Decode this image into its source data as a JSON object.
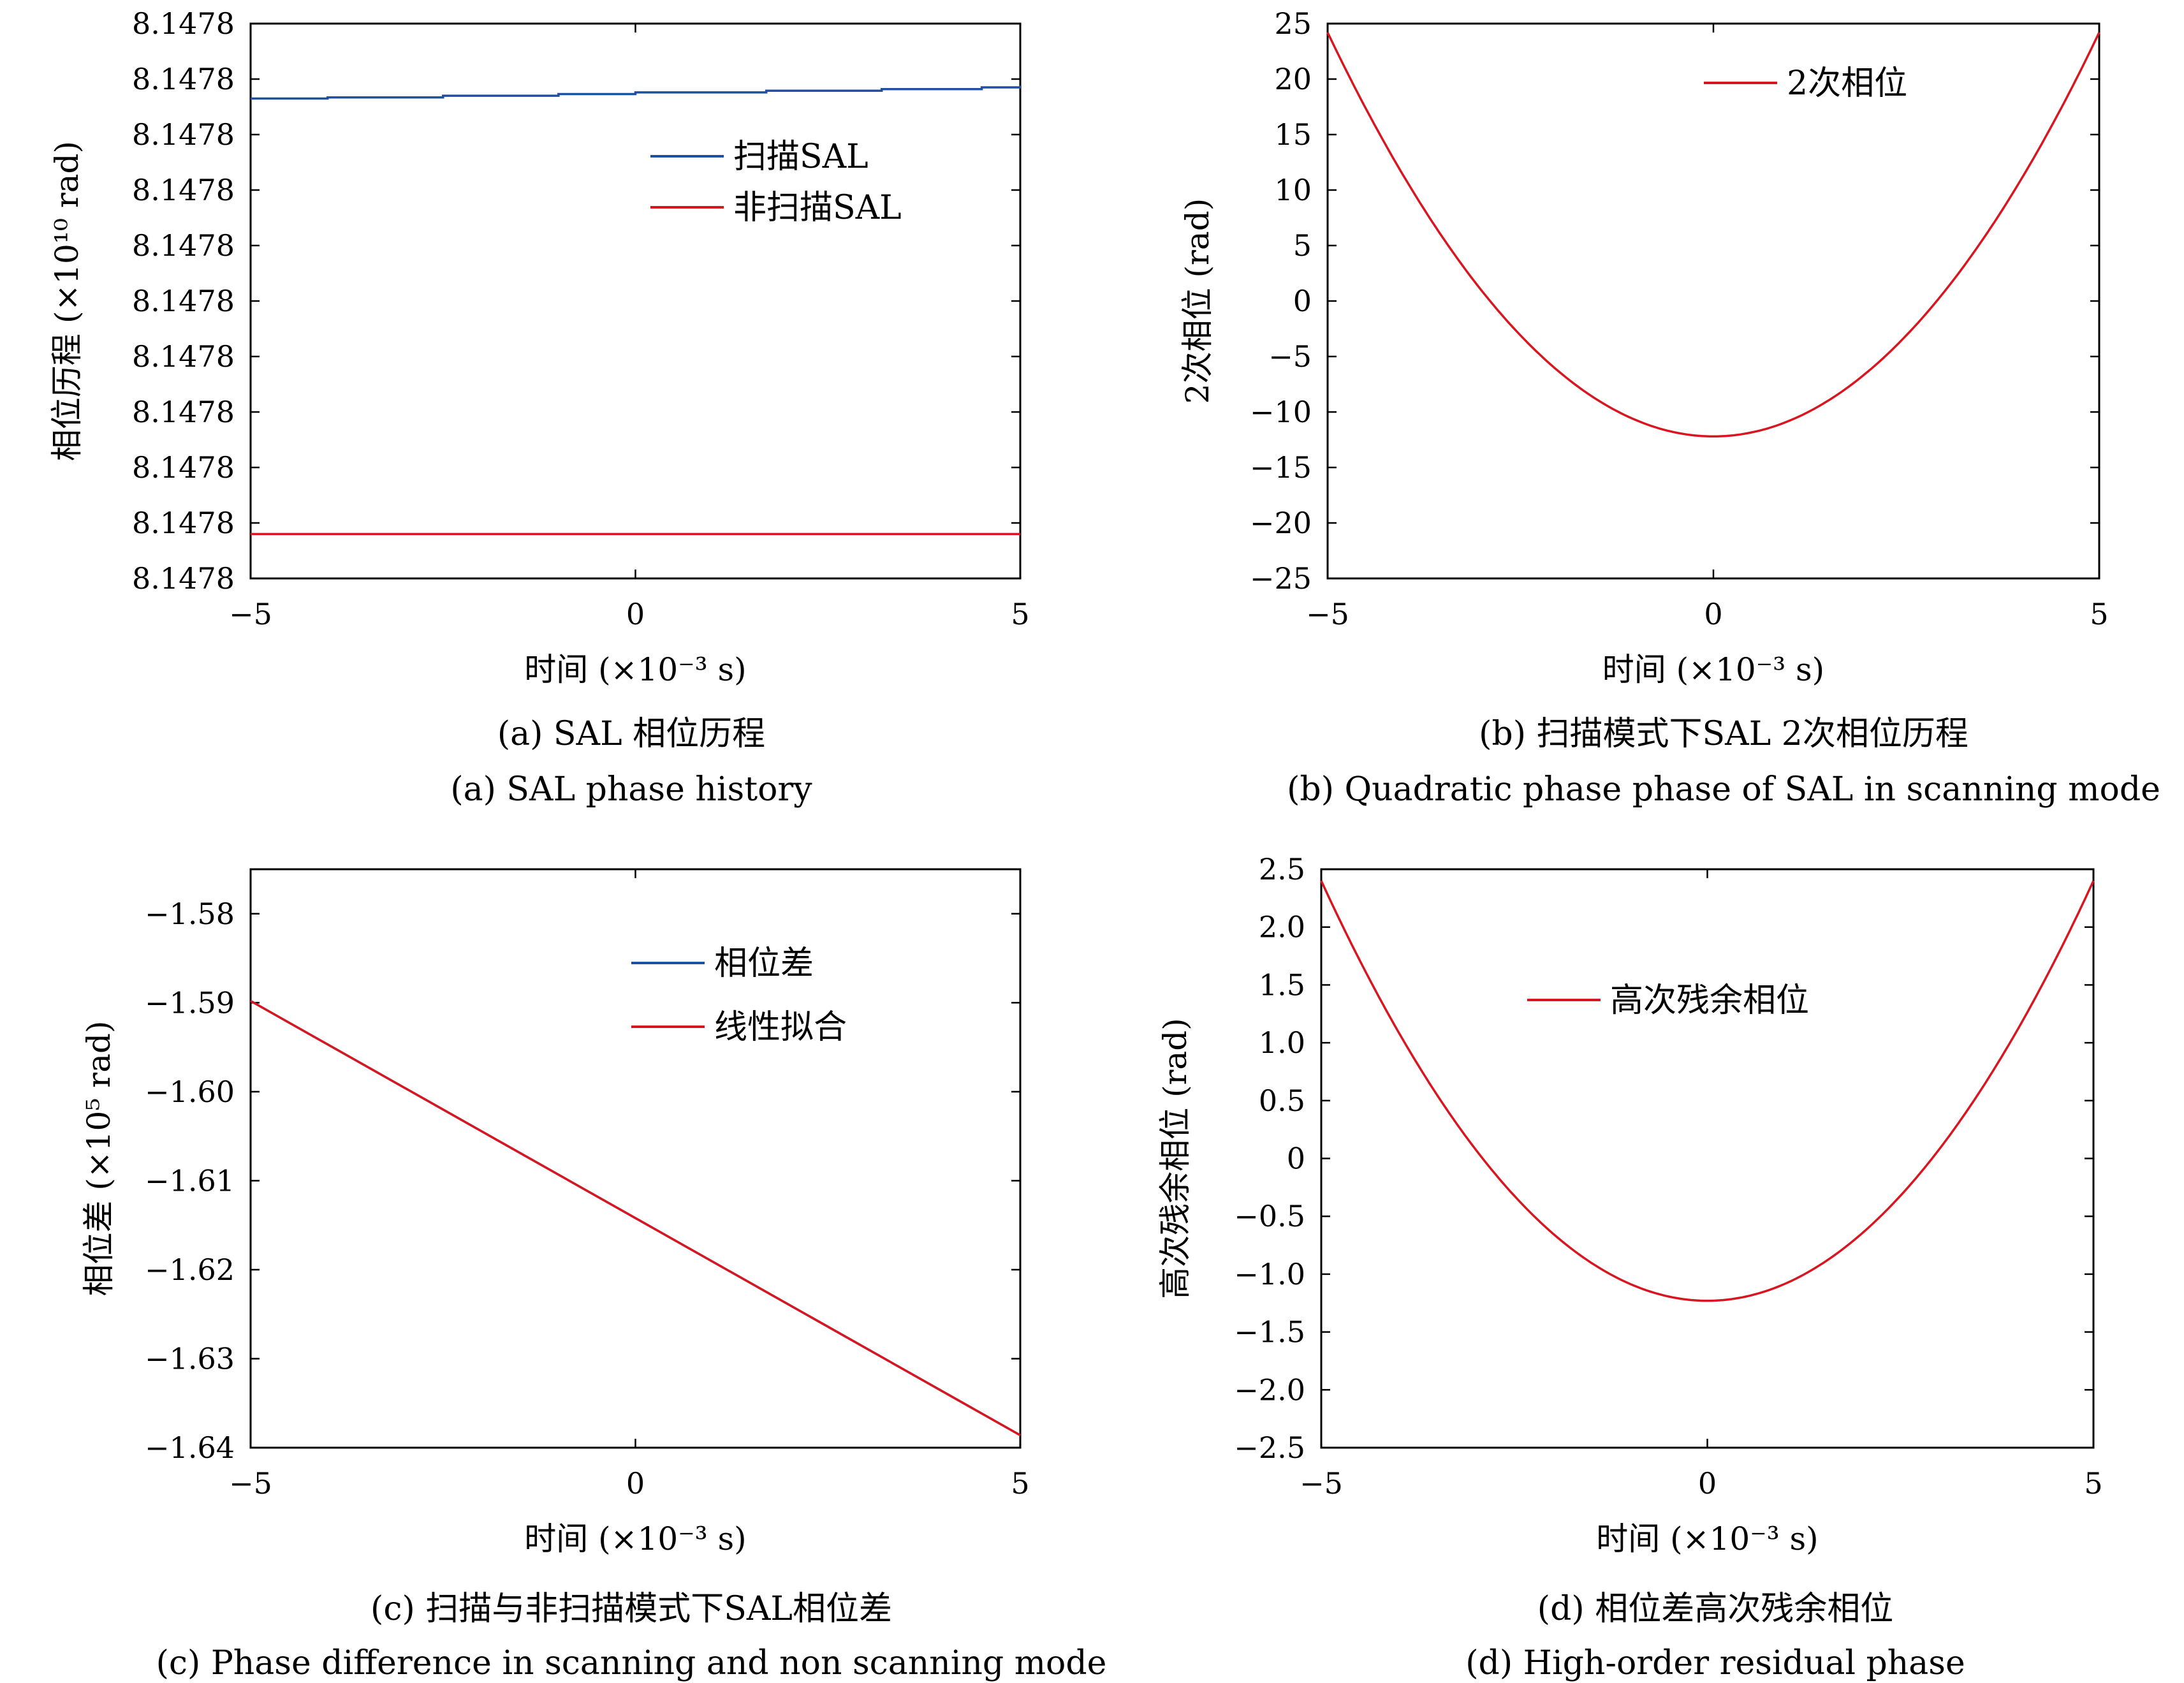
{
  "colors": {
    "blue": "#1f4fa0",
    "red": "#d9161f",
    "axis": "#000000"
  },
  "chart_data": [
    {
      "id": "a",
      "type": "line",
      "caption_cn": "(a) SAL 相位历程",
      "caption_en": "(a) SAL phase history",
      "xlabel": "时间 (×10⁻³ s)",
      "ylabel": "相位历程 (×10¹⁰ rad)",
      "xlim": [
        -5,
        5
      ],
      "ylim": [
        0,
        10
      ],
      "xticks": [
        -5,
        0,
        5
      ],
      "xtick_labels": [
        "−5",
        "0",
        "5"
      ],
      "yticks": [
        0,
        1,
        2,
        3,
        4,
        5,
        6,
        7,
        8,
        9,
        10
      ],
      "ytick_labels": [
        "8.1478",
        "8.1478",
        "8.1478",
        "8.1478",
        "8.1478",
        "8.1478",
        "8.1478",
        "8.1478",
        "8.1478",
        "8.1478",
        "8.1478"
      ],
      "legend": [
        {
          "label": "扫描SAL",
          "color": "#1f4fa0"
        },
        {
          "label": "非扫描SAL",
          "color": "#d9161f"
        }
      ],
      "series": [
        {
          "name": "扫描SAL",
          "color": "#1f4fa0",
          "step": true,
          "x": [
            -5,
            -4,
            -2.5,
            -1,
            0,
            1.7,
            3.2,
            4.5,
            5
          ],
          "y": [
            8.65,
            8.67,
            8.7,
            8.73,
            8.76,
            8.79,
            8.82,
            8.85,
            8.88
          ]
        },
        {
          "name": "非扫描SAL",
          "color": "#d9161f",
          "x": [
            -5,
            5
          ],
          "y": [
            0.8,
            0.8
          ]
        }
      ]
    },
    {
      "id": "b",
      "type": "line",
      "caption_cn": "(b) 扫描模式下SAL 2次相位历程",
      "caption_en": "(b) Quadratic phase phase of SAL in scanning mode",
      "xlabel": "时间 (×10⁻³ s)",
      "ylabel": "2次相位 (rad)",
      "xlim": [
        -5,
        5
      ],
      "ylim": [
        -25,
        25
      ],
      "xticks": [
        -5,
        0,
        5
      ],
      "xtick_labels": [
        "−5",
        "0",
        "5"
      ],
      "yticks": [
        -25,
        -20,
        -15,
        -10,
        -5,
        0,
        5,
        10,
        15,
        20,
        25
      ],
      "ytick_labels": [
        "−25",
        "−20",
        "−15",
        "−10",
        "−5",
        "0",
        "5",
        "10",
        "15",
        "20",
        "25"
      ],
      "legend": [
        {
          "label": "2次相位",
          "color": "#d9161f"
        }
      ],
      "series": [
        {
          "name": "2次相位",
          "color": "#d9161f",
          "func": "parabola",
          "vertex": -12.2,
          "end_value": 24.2
        }
      ]
    },
    {
      "id": "c",
      "type": "line",
      "caption_cn": "(c) 扫描与非扫描模式下SAL相位差",
      "caption_en": "(c) Phase difference in scanning and non scanning mode",
      "xlabel": "时间 (×10⁻³ s)",
      "ylabel": "相位差 (×10⁵ rad)",
      "xlim": [
        -5,
        5
      ],
      "ylim": [
        -1.64,
        -1.575
      ],
      "xticks": [
        -5,
        0,
        5
      ],
      "xtick_labels": [
        "−5",
        "0",
        "5"
      ],
      "yticks": [
        -1.64,
        -1.63,
        -1.62,
        -1.61,
        -1.6,
        -1.59,
        -1.58
      ],
      "ytick_labels": [
        "−1.64",
        "−1.63",
        "−1.62",
        "−1.61",
        "−1.60",
        "−1.59",
        "−1.58"
      ],
      "legend": [
        {
          "label": "相位差",
          "color": "#1f4fa0"
        },
        {
          "label": "线性拟合",
          "color": "#d9161f"
        }
      ],
      "series": [
        {
          "name": "相位差",
          "color": "#1f4fa0",
          "x": [
            -5,
            5
          ],
          "y": [
            -1.5898,
            -1.6386
          ]
        },
        {
          "name": "线性拟合",
          "color": "#d9161f",
          "x": [
            -5,
            5
          ],
          "y": [
            -1.5898,
            -1.6386
          ]
        }
      ]
    },
    {
      "id": "d",
      "type": "line",
      "caption_cn": "(d) 相位差高次残余相位",
      "caption_en": "(d) High-order residual phase",
      "xlabel": "时间 (×10⁻³ s)",
      "ylabel": "高次残余相位 (rad)",
      "xlim": [
        -5,
        5
      ],
      "ylim": [
        -2.5,
        2.5
      ],
      "xticks": [
        -5,
        0,
        5
      ],
      "xtick_labels": [
        "−5",
        "0",
        "5"
      ],
      "yticks": [
        -2.5,
        -2.0,
        -1.5,
        -1.0,
        -0.5,
        0,
        0.5,
        1.0,
        1.5,
        2.0,
        2.5
      ],
      "ytick_labels": [
        "−2.5",
        "−2.0",
        "−1.5",
        "−1.0",
        "−0.5",
        "0",
        "0.5",
        "1.0",
        "1.5",
        "2.0",
        "2.5"
      ],
      "legend": [
        {
          "label": "高次残余相位",
          "color": "#d9161f"
        }
      ],
      "series": [
        {
          "name": "高次残余相位",
          "color": "#d9161f",
          "func": "parabola",
          "vertex": -1.23,
          "end_value": 2.4
        }
      ]
    }
  ]
}
